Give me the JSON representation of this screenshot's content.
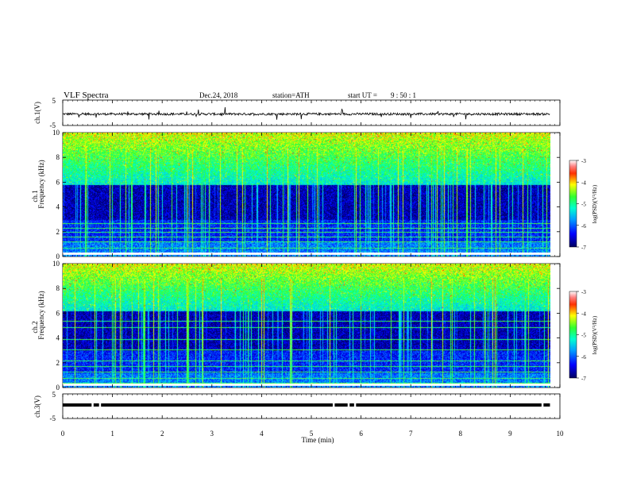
{
  "header": {
    "title": "VLF  Spectra",
    "date": "Dec.24, 2018",
    "station": "station=ATH",
    "start_label": "start  UT  =",
    "start_time": "9  : 50 : 1"
  },
  "chart_data": [
    {
      "type": "line",
      "panel": "ch1-waveform",
      "ylabel": "ch.1(V)",
      "ylim": [
        -5,
        5
      ],
      "yticks": [
        "5",
        "-5"
      ],
      "xlim": [
        0,
        10
      ],
      "baseline": -0.5,
      "series_color": "#000000"
    },
    {
      "type": "heatmap",
      "panel": "ch1-spectrogram",
      "ylabel": "Frequency  (kHz)",
      "channel_label": "ch.1",
      "ylim": [
        0,
        10
      ],
      "yticks": [
        "0",
        "2",
        "4",
        "6",
        "8",
        "10"
      ],
      "xlim": [
        0,
        9.8
      ],
      "colorbar": {
        "label": "log(PSD)(V²/Hz)",
        "range": [
          -7,
          -3
        ],
        "ticks": [
          "-3",
          "-4",
          "-5",
          "-6",
          "-7"
        ]
      },
      "noise_floor_kHz": 5.8,
      "interference_lines_kHz": [
        0.3,
        0.7,
        1.2,
        1.6,
        2.0,
        2.3,
        2.7
      ]
    },
    {
      "type": "heatmap",
      "panel": "ch2-spectrogram",
      "ylabel": "Frequency  (kHz)",
      "channel_label": "ch.2",
      "ylim": [
        0,
        10
      ],
      "yticks": [
        "0",
        "2",
        "4",
        "6",
        "8",
        "10"
      ],
      "xlim": [
        0,
        9.8
      ],
      "colorbar": {
        "label": "log(PSD)(V²/Hz)",
        "range": [
          -7,
          -3
        ],
        "ticks": [
          "-3",
          "-4",
          "-5",
          "-6",
          "-7"
        ]
      },
      "noise_floor_kHz": 6.2,
      "interference_lines_kHz": [
        0.4,
        0.8,
        1.3,
        1.7,
        2.2,
        3.1,
        3.9,
        4.9,
        5.4
      ]
    },
    {
      "type": "line",
      "panel": "ch3-waveform",
      "ylabel": "ch.3(V)",
      "ylim": [
        -5,
        5
      ],
      "yticks": [
        "5",
        "-5"
      ],
      "xlim": [
        0,
        9.8
      ],
      "level": 0.5,
      "gaps_min": [
        0.6,
        0.75,
        5.45,
        5.75,
        5.88,
        9.65
      ]
    }
  ],
  "x_axis": {
    "label": "Time  (min)",
    "ticks": [
      "0",
      "1",
      "2",
      "3",
      "4",
      "5",
      "6",
      "7",
      "8",
      "9",
      "10"
    ],
    "range": [
      0,
      10
    ]
  }
}
